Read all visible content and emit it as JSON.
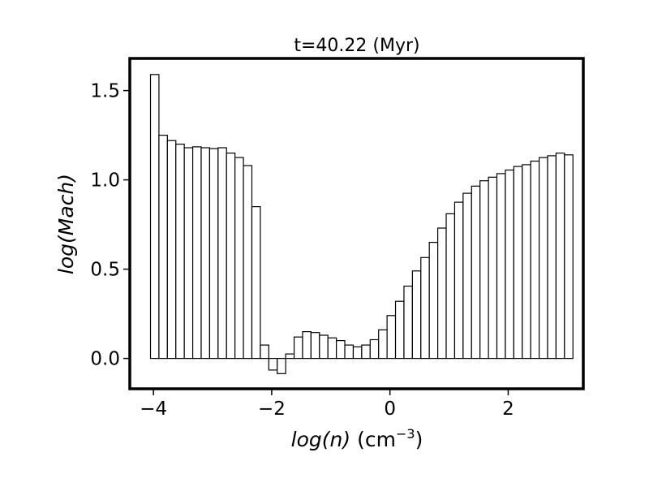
{
  "chart_data": {
    "type": "bar",
    "title": "t=40.22 (Myr)",
    "xlabel_main": "log(n)",
    "xlabel_unit_prefix": "(cm",
    "xlabel_unit_exp": "−3",
    "xlabel_unit_suffix": ")",
    "ylabel": "log(Mach)",
    "xlim": [
      -4.4,
      3.27
    ],
    "ylim": [
      -0.17,
      1.68
    ],
    "x_ticks": [
      {
        "value": -4,
        "label": "−4"
      },
      {
        "value": -2,
        "label": "−2"
      },
      {
        "value": 0,
        "label": "0"
      },
      {
        "value": 2,
        "label": "2"
      }
    ],
    "y_ticks": [
      {
        "value": 0.0,
        "label": "0.0"
      },
      {
        "value": 0.5,
        "label": "0.5"
      },
      {
        "value": 1.0,
        "label": "1.0"
      },
      {
        "value": 1.5,
        "label": "1.5"
      }
    ],
    "bin_start": -4.05,
    "bin_width": 0.1429,
    "values": [
      1.59,
      1.25,
      1.22,
      1.2,
      1.18,
      1.185,
      1.18,
      1.175,
      1.18,
      1.15,
      1.125,
      1.08,
      0.85,
      0.075,
      -0.065,
      -0.085,
      0.025,
      0.12,
      0.15,
      0.145,
      0.13,
      0.115,
      0.1,
      0.075,
      0.065,
      0.075,
      0.105,
      0.16,
      0.24,
      0.32,
      0.405,
      0.49,
      0.565,
      0.65,
      0.73,
      0.81,
      0.875,
      0.925,
      0.965,
      0.995,
      1.015,
      1.035,
      1.055,
      1.075,
      1.085,
      1.105,
      1.125,
      1.135,
      1.15,
      1.14
    ],
    "grid": false,
    "legend": "none"
  }
}
